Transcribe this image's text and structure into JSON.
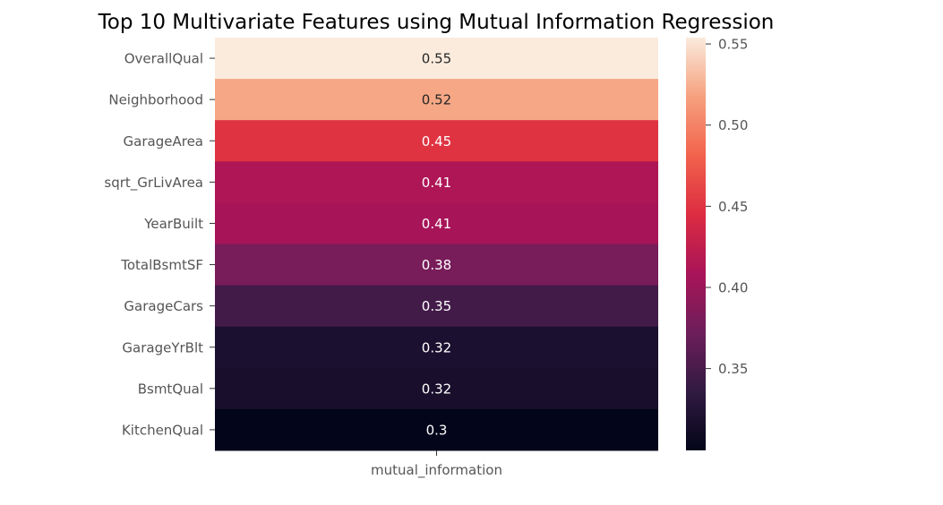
{
  "chart_data": {
    "type": "heatmap",
    "title": "Top 10 Multivariate Features using Mutual Information Regression",
    "xlabel": "",
    "ylabel": "",
    "columns": [
      "mutual_information"
    ],
    "rows": [
      "OverallQual",
      "Neighborhood",
      "GarageArea",
      "sqrt_GrLivArea",
      "YearBuilt",
      "TotalBsmtSF",
      "GarageCars",
      "GarageYrBlt",
      "BsmtQual",
      "KitchenQual"
    ],
    "values": [
      0.5539,
      0.5203,
      0.4497,
      0.4121,
      0.4071,
      0.3788,
      0.347,
      0.3189,
      0.3172,
      0.2996
    ],
    "annotations": [
      "0.55",
      "0.52",
      "0.45",
      "0.41",
      "0.41",
      "0.38",
      "0.35",
      "0.32",
      "0.32",
      "0.3"
    ],
    "colormap": "rocket",
    "colorbar": {
      "vmin": 0.2996,
      "vmax": 0.5539,
      "ticks": [
        0.35,
        0.4,
        0.45,
        0.5,
        0.55
      ],
      "tick_labels": [
        "0.35",
        "0.40",
        "0.45",
        "0.50",
        "0.55"
      ]
    }
  },
  "colors": {
    "rocket_stops": [
      "#03051a",
      "#311a41",
      "#6d1e5a",
      "#a91458",
      "#dc2c41",
      "#f2634c",
      "#f6a17e",
      "#faebdd"
    ],
    "text_dark": "#262626",
    "text_light": "#ffffff",
    "tick_label": "#555555"
  }
}
